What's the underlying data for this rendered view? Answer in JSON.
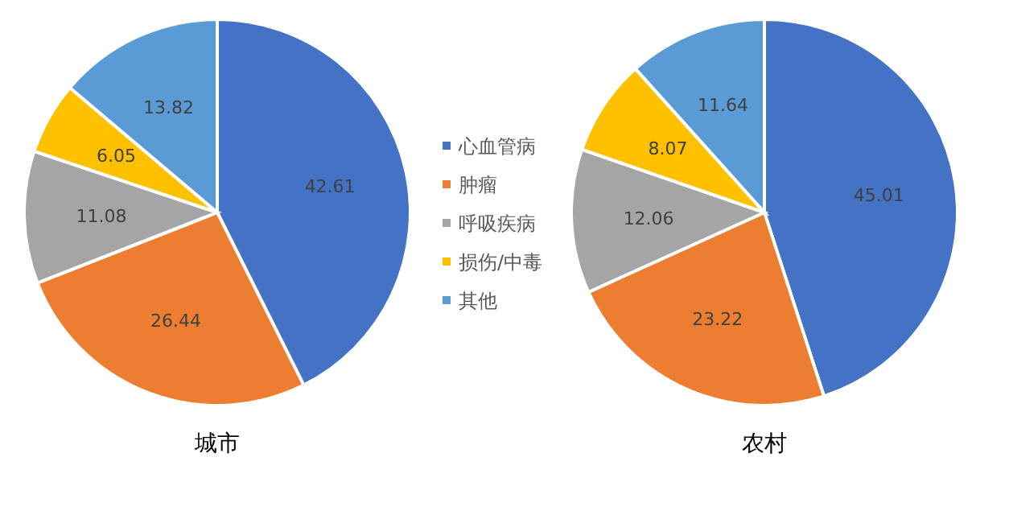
{
  "chart_data": [
    {
      "type": "pie",
      "title": "城市",
      "categories": [
        "心血管病",
        "肿瘤",
        "呼吸疾病",
        "损伤/中毒",
        "其他"
      ],
      "values": [
        42.61,
        26.44,
        11.08,
        6.05,
        13.82
      ],
      "colors": [
        "#4472c4",
        "#ed7d31",
        "#a5a5a5",
        "#ffc000",
        "#5b9bd5"
      ],
      "data_labels": true,
      "legend": "right"
    },
    {
      "type": "pie",
      "title": "农村",
      "categories": [
        null,
        null,
        null,
        null,
        null
      ],
      "values": [
        45.01,
        23.22,
        12.06,
        8.07,
        11.64
      ],
      "colors": [
        "#4472c4",
        "#ed7d31",
        "#a5a5a5",
        "#ffc000",
        "#5b9bd5"
      ],
      "data_labels": true,
      "legend": false
    }
  ]
}
